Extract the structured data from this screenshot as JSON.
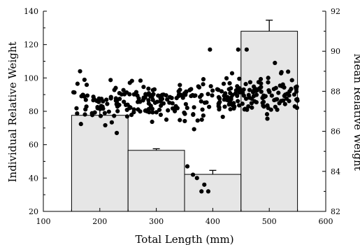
{
  "chart_data": {
    "type": "bar",
    "xlabel": "Total Length (mm)",
    "ylabel": "Individual Relative Weight",
    "y2label": "Mean Relative Weight",
    "xlim": [
      100,
      600
    ],
    "ylim": [
      20,
      140
    ],
    "y2lim": [
      82,
      92
    ],
    "xticks": [
      "100",
      "200",
      "300",
      "400",
      "500",
      "600"
    ],
    "yticks": [
      "20",
      "40",
      "60",
      "80",
      "100",
      "120",
      "140"
    ],
    "y2ticks": [
      "82",
      "84",
      "86",
      "88",
      "90",
      "92"
    ],
    "bars": [
      {
        "x0": 150,
        "x1": 250,
        "mean": 86.8,
        "error": 0.3
      },
      {
        "x0": 250,
        "x1": 350,
        "mean": 85.05,
        "error": 0.08
      },
      {
        "x0": 350,
        "x1": 450,
        "mean": 83.85,
        "error": 0.2
      },
      {
        "x0": 450,
        "x1": 550,
        "mean": 91.0,
        "error": 0.55
      }
    ],
    "scatter_seed": 7,
    "scatter_count": 330
  }
}
